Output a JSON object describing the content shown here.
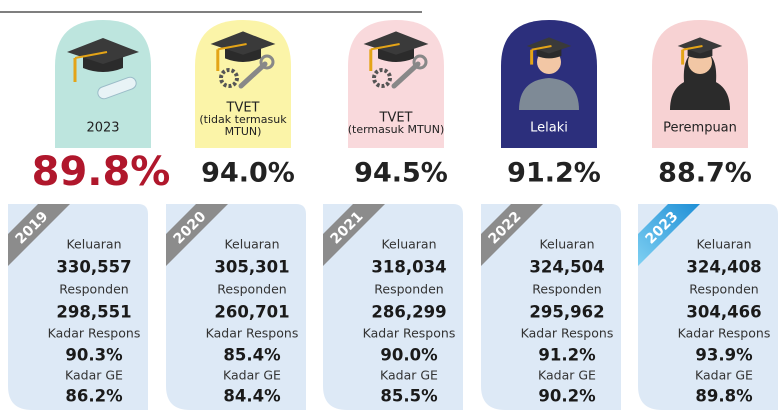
{
  "top_cards": [
    {
      "label": [
        "2023"
      ],
      "percent": "89.8%"
    },
    {
      "label": [
        "TVET",
        "(tidak termasuk",
        "MTUN)"
      ],
      "percent": "94.0%"
    },
    {
      "label": [
        "TVET",
        "(termasuk MTUN)"
      ],
      "percent": "94.5%"
    },
    {
      "label": [
        "Lelaki"
      ],
      "percent": "91.2%"
    },
    {
      "label": [
        "Perempuan"
      ],
      "percent": "88.7%"
    }
  ],
  "year_cards": [
    {
      "year": "2019",
      "rows": [
        [
          "Keluaran",
          "330,557"
        ],
        [
          "Responden",
          "298,551"
        ],
        [
          "Kadar Respons",
          "90.3%"
        ],
        [
          "Kadar GE",
          "86.2%"
        ]
      ]
    },
    {
      "year": "2020",
      "rows": [
        [
          "Keluaran",
          "305,301"
        ],
        [
          "Responden",
          "260,701"
        ],
        [
          "Kadar Respons",
          "85.4%"
        ],
        [
          "Kadar GE",
          "84.4%"
        ]
      ]
    },
    {
      "year": "2021",
      "rows": [
        [
          "Keluaran",
          "318,034"
        ],
        [
          "Responden",
          "286,299"
        ],
        [
          "Kadar Respons",
          "90.0%"
        ],
        [
          "Kadar GE",
          "85.5%"
        ]
      ]
    },
    {
      "year": "2022",
      "rows": [
        [
          "Keluaran",
          "324,504"
        ],
        [
          "Responden",
          "295,962"
        ],
        [
          "Kadar Respons",
          "91.2%"
        ],
        [
          "Kadar GE",
          "90.2%"
        ]
      ]
    },
    {
      "year": "2023",
      "rows": [
        [
          "Keluaran",
          "324,408"
        ],
        [
          "Responden",
          "304,466"
        ],
        [
          "Kadar Respons",
          "93.9%"
        ],
        [
          "Kadar GE",
          "89.8%"
        ]
      ]
    }
  ]
}
